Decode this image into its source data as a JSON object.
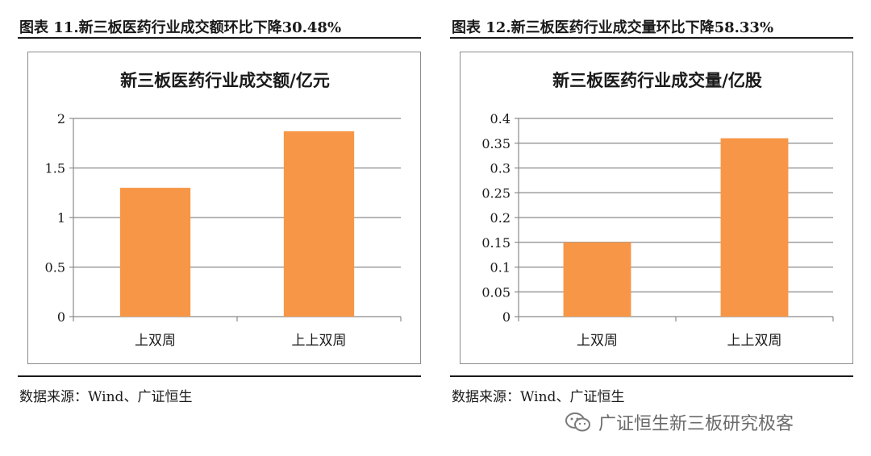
{
  "figures": [
    {
      "caption": "图表 11.新三板医药行业成交额环比下降30.48%",
      "source": "数据来源：Wind、广证恒生",
      "chart_data": {
        "type": "bar",
        "title": "新三板医药行业成交额/亿元",
        "categories": [
          "上双周",
          "上上双周"
        ],
        "values": [
          1.3,
          1.87
        ],
        "ylim": [
          0,
          2
        ],
        "yticks": [
          "0",
          "0.5",
          "1",
          "1.5",
          "2"
        ],
        "grid": true,
        "bar_color": "#F79646"
      }
    },
    {
      "caption": "图表 12.新三板医药行业成交量环比下降58.33%",
      "source": "数据来源：Wind、广证恒生",
      "chart_data": {
        "type": "bar",
        "title": "新三板医药行业成交量/亿股",
        "categories": [
          "上双周",
          "上上双周"
        ],
        "values": [
          0.15,
          0.36
        ],
        "ylim": [
          0,
          0.4
        ],
        "yticks": [
          "0",
          "0.05",
          "0.1",
          "0.15",
          "0.2",
          "0.25",
          "0.3",
          "0.35",
          "0.4"
        ],
        "grid": true,
        "bar_color": "#F79646"
      }
    }
  ],
  "watermark": {
    "icon": "wechat-icon",
    "text": "广证恒生新三板研究极客"
  }
}
